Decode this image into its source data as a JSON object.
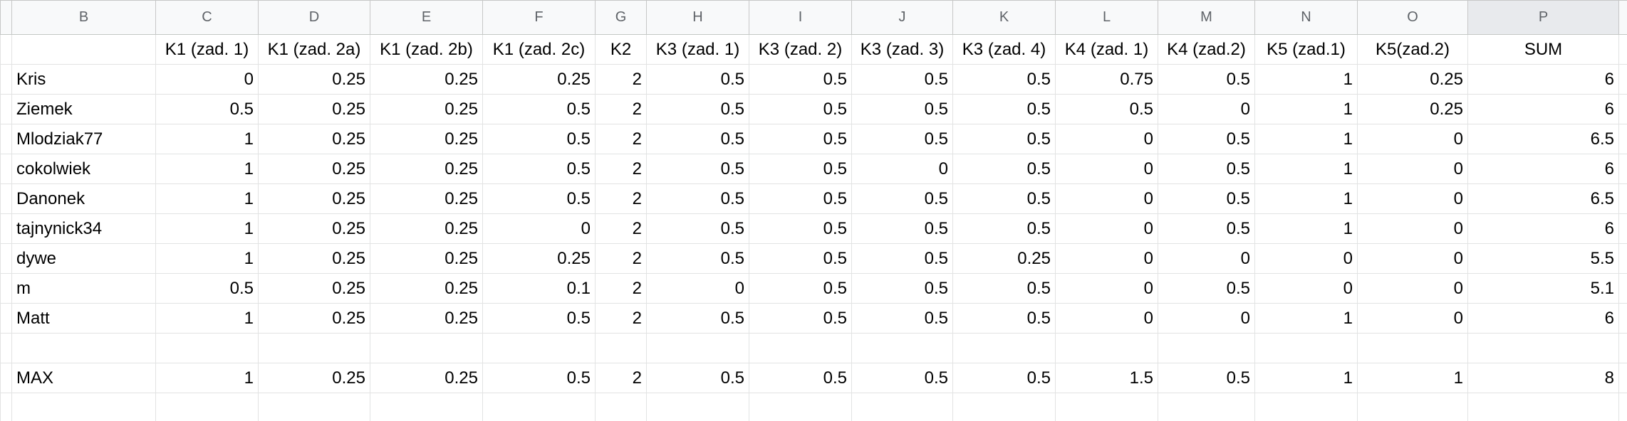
{
  "columns": [
    "B",
    "C",
    "D",
    "E",
    "F",
    "G",
    "H",
    "I",
    "J",
    "K",
    "L",
    "M",
    "N",
    "O",
    "P"
  ],
  "selected_column": "P",
  "header_row": [
    "",
    "K1 (zad. 1)",
    "K1 (zad. 2a)",
    "K1 (zad. 2b)",
    "K1 (zad. 2c)",
    "K2",
    "K3 (zad. 1)",
    "K3 (zad. 2)",
    "K3 (zad. 3)",
    "K3 (zad. 4)",
    "K4 (zad. 1)",
    "K4 (zad.2)",
    "K5 (zad.1)",
    "K5(zad.2)",
    "SUM"
  ],
  "rows": [
    [
      "Kris",
      "0",
      "0.25",
      "0.25",
      "0.25",
      "2",
      "0.5",
      "0.5",
      "0.5",
      "0.5",
      "0.75",
      "0.5",
      "1",
      "0.25",
      "6"
    ],
    [
      "Ziemek",
      "0.5",
      "0.25",
      "0.25",
      "0.5",
      "2",
      "0.5",
      "0.5",
      "0.5",
      "0.5",
      "0.5",
      "0",
      "1",
      "0.25",
      "6"
    ],
    [
      "Mlodziak77",
      "1",
      "0.25",
      "0.25",
      "0.5",
      "2",
      "0.5",
      "0.5",
      "0.5",
      "0.5",
      "0",
      "0.5",
      "1",
      "0",
      "6.5"
    ],
    [
      "cokolwiek",
      "1",
      "0.25",
      "0.25",
      "0.5",
      "2",
      "0.5",
      "0.5",
      "0",
      "0.5",
      "0",
      "0.5",
      "1",
      "0",
      "6"
    ],
    [
      "Danonek",
      "1",
      "0.25",
      "0.25",
      "0.5",
      "2",
      "0.5",
      "0.5",
      "0.5",
      "0.5",
      "0",
      "0.5",
      "1",
      "0",
      "6.5"
    ],
    [
      "tajnynick34",
      "1",
      "0.25",
      "0.25",
      "0",
      "2",
      "0.5",
      "0.5",
      "0.5",
      "0.5",
      "0",
      "0.5",
      "1",
      "0",
      "6"
    ],
    [
      "dywe",
      "1",
      "0.25",
      "0.25",
      "0.25",
      "2",
      "0.5",
      "0.5",
      "0.5",
      "0.25",
      "0",
      "0",
      "0",
      "0",
      "5.5"
    ],
    [
      "m",
      "0.5",
      "0.25",
      "0.25",
      "0.1",
      "2",
      "0",
      "0.5",
      "0.5",
      "0.5",
      "0",
      "0.5",
      "0",
      "0",
      "5.1"
    ],
    [
      "Matt",
      "1",
      "0.25",
      "0.25",
      "0.5",
      "2",
      "0.5",
      "0.5",
      "0.5",
      "0.5",
      "0",
      "0",
      "1",
      "0",
      "6"
    ],
    [
      "",
      "",
      "",
      "",
      "",
      "",
      "",
      "",
      "",
      "",
      "",
      "",
      "",
      "",
      ""
    ],
    [
      "MAX",
      "1",
      "0.25",
      "0.25",
      "0.5",
      "2",
      "0.5",
      "0.5",
      "0.5",
      "0.5",
      "1.5",
      "0.5",
      "1",
      "1",
      "8"
    ],
    [
      "",
      "",
      "",
      "",
      "",
      "",
      "",
      "",
      "",
      "",
      "",
      "",
      "",
      "",
      ""
    ]
  ]
}
